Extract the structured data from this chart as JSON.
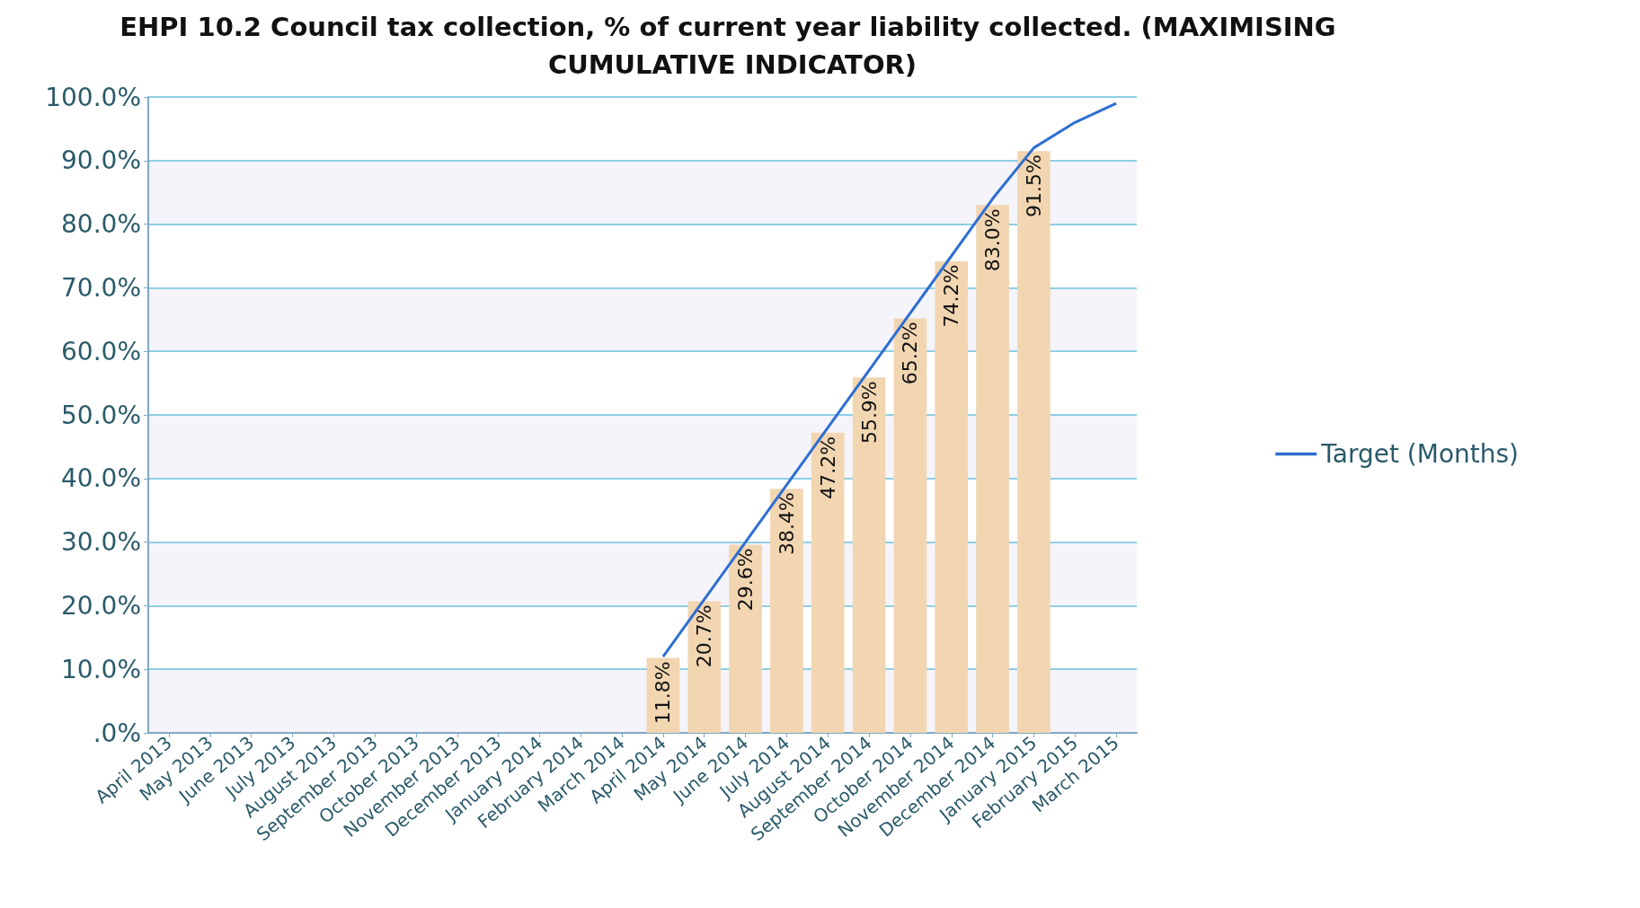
{
  "chart_data": {
    "type": "bar",
    "title": "EHPI 10.2 Council tax collection, % of current year liability collected. (MAXIMISING CUMULATIVE INDICATOR)",
    "categories": [
      "April 2013",
      "May 2013",
      "June 2013",
      "July 2013",
      "August 2013",
      "September 2013",
      "October 2013",
      "November 2013",
      "December 2013",
      "January 2014",
      "February 2014",
      "March 2014",
      "April 2014",
      "May 2014",
      "June 2014",
      "July 2014",
      "August 2014",
      "September 2014",
      "October 2014",
      "November 2014",
      "December 2014",
      "January 2015",
      "February 2015",
      "March 2015"
    ],
    "series": [
      {
        "color": "#f2d6b2",
        "values": [
          null,
          null,
          null,
          null,
          null,
          null,
          null,
          null,
          null,
          null,
          null,
          null,
          11.8,
          20.7,
          29.6,
          38.4,
          47.2,
          55.9,
          65.2,
          74.2,
          83.0,
          91.5,
          null,
          null
        ],
        "value_labels": [
          null,
          null,
          null,
          null,
          null,
          null,
          null,
          null,
          null,
          null,
          null,
          null,
          "11.8%",
          "20.7%",
          "29.6%",
          "38.4%",
          "47.2%",
          "55.9%",
          "65.2%",
          "74.2%",
          "83.0%",
          "91.5%",
          null,
          null
        ]
      },
      {
        "type": "line",
        "name": "Target (Months)",
        "color": "#2e6fd1",
        "values": [
          null,
          null,
          null,
          null,
          null,
          null,
          null,
          null,
          null,
          null,
          null,
          null,
          12,
          21,
          30,
          39,
          48,
          57,
          66,
          75,
          84,
          92,
          96,
          99
        ]
      }
    ],
    "ylim": [
      0,
      100
    ],
    "yticks": [
      {
        "value": 0,
        "label": ".0%"
      },
      {
        "value": 10,
        "label": "10.0%"
      },
      {
        "value": 20,
        "label": "20.0%"
      },
      {
        "value": 30,
        "label": "30.0%"
      },
      {
        "value": 40,
        "label": "40.0%"
      },
      {
        "value": 50,
        "label": "50.0%"
      },
      {
        "value": 60,
        "label": "60.0%"
      },
      {
        "value": 70,
        "label": "70.0%"
      },
      {
        "value": 80,
        "label": "80.0%"
      },
      {
        "value": 90,
        "label": "90.0%"
      },
      {
        "value": 100,
        "label": "100.0%"
      }
    ],
    "grid": "y",
    "legend": "right",
    "marker": "none"
  }
}
